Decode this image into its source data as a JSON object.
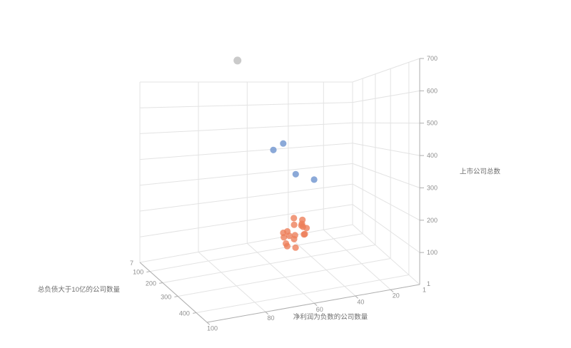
{
  "chart_data": {
    "type": "scatter",
    "projection": "3d",
    "title": "",
    "legend": false,
    "grid": true,
    "background": "#ffffff",
    "colors": {
      "grid_line": "#e3e3e3",
      "axis_line": "#aeaeae",
      "tick_label": "#8f8f8f",
      "axis_name": "#6f6f6f"
    },
    "axes": {
      "x": {
        "name": "净利润为负数的公司数量",
        "min": 1,
        "max": 100,
        "ticks": [
          100,
          80,
          60,
          40,
          20
        ],
        "min_label": "1"
      },
      "y": {
        "name": "总负债大于10亿的公司数量",
        "min": 7,
        "max": 450,
        "ticks": [
          400,
          300,
          200,
          100
        ],
        "min_label": "7"
      },
      "z": {
        "name": "上市公司总数",
        "min": 1,
        "max": 700,
        "ticks": [
          700,
          600,
          500,
          400,
          300,
          200,
          100
        ],
        "min_label": "1"
      }
    },
    "series": [
      {
        "id": "outlier-gray",
        "color": "#9e9e9e",
        "opacity": 0.55,
        "size": 5.5,
        "points": [
          [
            88,
            423,
            700
          ]
        ]
      },
      {
        "id": "mid-blue",
        "color": "#6e94ce",
        "opacity": 0.8,
        "size": 4.6,
        "points": [
          [
            61,
            302,
            450
          ],
          [
            65,
            298,
            430
          ],
          [
            54,
            285,
            340
          ],
          [
            45,
            285,
            315
          ]
        ]
      },
      {
        "id": "low-salmon",
        "color": "#ed7d58",
        "opacity": 0.78,
        "size": 4.6,
        "points": [
          [
            53,
            260,
            180
          ],
          [
            58,
            265,
            120
          ],
          [
            48,
            245,
            150
          ],
          [
            46,
            225,
            130
          ],
          [
            51,
            240,
            110
          ],
          [
            44,
            210,
            95
          ],
          [
            50,
            220,
            140
          ],
          [
            56,
            250,
            90
          ],
          [
            42,
            195,
            110
          ],
          [
            49,
            205,
            80
          ],
          [
            54,
            230,
            70
          ],
          [
            47,
            235,
            160
          ],
          [
            45,
            200,
            125
          ],
          [
            52,
            215,
            100
          ],
          [
            59,
            275,
            140
          ],
          [
            43,
            190,
            85
          ],
          [
            55,
            245,
            130
          ],
          [
            50,
            230,
            60
          ]
        ]
      }
    ]
  }
}
